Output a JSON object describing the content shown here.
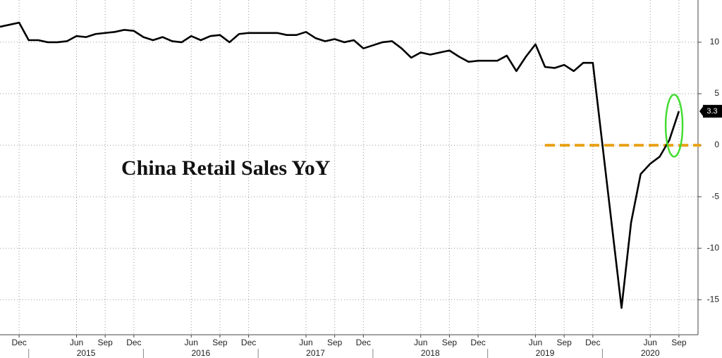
{
  "chart_data": {
    "type": "line",
    "title": "China Retail Sales YoY",
    "x": [
      "2014-10",
      "2014-11",
      "2014-12",
      "2015-01",
      "2015-02",
      "2015-03",
      "2015-04",
      "2015-05",
      "2015-06",
      "2015-07",
      "2015-08",
      "2015-09",
      "2015-10",
      "2015-11",
      "2015-12",
      "2016-01",
      "2016-02",
      "2016-03",
      "2016-04",
      "2016-05",
      "2016-06",
      "2016-07",
      "2016-08",
      "2016-09",
      "2016-10",
      "2016-11",
      "2016-12",
      "2017-01",
      "2017-02",
      "2017-03",
      "2017-04",
      "2017-05",
      "2017-06",
      "2017-07",
      "2017-08",
      "2017-09",
      "2017-10",
      "2017-11",
      "2017-12",
      "2018-01",
      "2018-02",
      "2018-03",
      "2018-04",
      "2018-05",
      "2018-06",
      "2018-07",
      "2018-08",
      "2018-09",
      "2018-10",
      "2018-11",
      "2018-12",
      "2019-01",
      "2019-02",
      "2019-03",
      "2019-04",
      "2019-05",
      "2019-06",
      "2019-07",
      "2019-08",
      "2019-09",
      "2019-10",
      "2019-11",
      "2019-12",
      "2020-03",
      "2020-04",
      "2020-05",
      "2020-06",
      "2020-07",
      "2020-08",
      "2020-09"
    ],
    "series": [
      {
        "color": "#000000",
        "values": [
          11.5,
          11.7,
          11.9,
          10.2,
          10.2,
          10.0,
          10.0,
          10.1,
          10.6,
          10.5,
          10.8,
          10.9,
          11.0,
          11.2,
          11.1,
          10.5,
          10.2,
          10.5,
          10.1,
          10.0,
          10.6,
          10.2,
          10.6,
          10.7,
          10.0,
          10.8,
          10.9,
          10.9,
          10.9,
          10.9,
          10.7,
          10.7,
          11.0,
          10.4,
          10.1,
          10.3,
          10.0,
          10.2,
          9.4,
          9.7,
          10.0,
          10.1,
          9.4,
          8.5,
          9.0,
          8.8,
          9.0,
          9.2,
          8.6,
          8.1,
          8.2,
          8.2,
          8.2,
          8.7,
          7.2,
          8.6,
          9.8,
          7.6,
          7.5,
          7.8,
          7.2,
          8.0,
          8.0,
          -15.8,
          -7.5,
          -2.8,
          -1.8,
          -1.1,
          0.5,
          3.3
        ]
      }
    ],
    "xlim": [
      "2014-10",
      "2020-11"
    ],
    "xticks": [
      {
        "value": "2014-12",
        "label": "Dec"
      },
      {
        "value": "2015-06",
        "label": "Jun"
      },
      {
        "value": "2015-09",
        "label": "Sep"
      },
      {
        "value": "2015-12",
        "label": "Dec"
      },
      {
        "value": "2016-06",
        "label": "Jun"
      },
      {
        "value": "2016-09",
        "label": "Sep"
      },
      {
        "value": "2016-12",
        "label": "Dec"
      },
      {
        "value": "2017-06",
        "label": "Jun"
      },
      {
        "value": "2017-09",
        "label": "Sep"
      },
      {
        "value": "2017-12",
        "label": "Dec"
      },
      {
        "value": "2018-06",
        "label": "Jun"
      },
      {
        "value": "2018-09",
        "label": "Sep"
      },
      {
        "value": "2018-12",
        "label": "Dec"
      },
      {
        "value": "2019-06",
        "label": "Jun"
      },
      {
        "value": "2019-09",
        "label": "Sep"
      },
      {
        "value": "2019-12",
        "label": "Dec"
      },
      {
        "value": "2020-06",
        "label": "Jun"
      },
      {
        "value": "2020-09",
        "label": "Sep"
      }
    ],
    "xgroups": [
      {
        "label": "2015",
        "from": "2015-01",
        "to": "2015-12"
      },
      {
        "label": "2016",
        "from": "2016-01",
        "to": "2016-12"
      },
      {
        "label": "2017",
        "from": "2017-01",
        "to": "2017-12"
      },
      {
        "label": "2018",
        "from": "2018-01",
        "to": "2018-12"
      },
      {
        "label": "2019",
        "from": "2019-01",
        "to": "2019-12"
      },
      {
        "label": "2020",
        "from": "2020-01",
        "to": "2020-10"
      }
    ],
    "ylim": [
      -18.4,
      14.1
    ],
    "yticks": [
      -15,
      -10,
      -5,
      0,
      5,
      10
    ],
    "grid": true,
    "reference_line": {
      "value": 0,
      "from": "2019-07",
      "color": "#e8a317"
    },
    "highlight": {
      "from": "2020-08",
      "to": "2020-09",
      "color": "#44dd33"
    }
  }
}
